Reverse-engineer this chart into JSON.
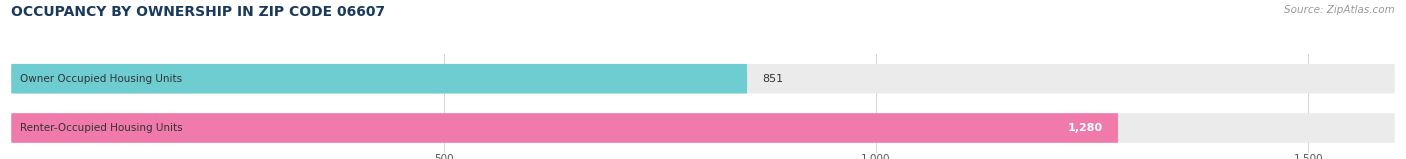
{
  "title": "OCCUPANCY BY OWNERSHIP IN ZIP CODE 06607",
  "source": "Source: ZipAtlas.com",
  "categories": [
    "Owner Occupied Housing Units",
    "Renter-Occupied Housing Units"
  ],
  "values": [
    851,
    1280
  ],
  "bar_colors": [
    "#6dcdd0",
    "#f07aaa"
  ],
  "bar_bg_color": "#ebebeb",
  "value_labels": [
    "851",
    "1,280"
  ],
  "xlim": [
    0,
    1600
  ],
  "xticks": [
    500,
    1000,
    1500
  ],
  "xtick_labels": [
    "500",
    "1,000",
    "1,500"
  ],
  "title_color": "#1a3a5c",
  "source_color": "#999999",
  "label_color": "#333333",
  "value_color_owner": "#333333",
  "value_color_renter": "#ffffff",
  "bar_height": 0.6,
  "fig_width": 14.06,
  "fig_height": 1.59,
  "title_fontsize": 10,
  "label_fontsize": 7.5,
  "value_fontsize": 8,
  "source_fontsize": 7.5,
  "tick_fontsize": 7.5
}
